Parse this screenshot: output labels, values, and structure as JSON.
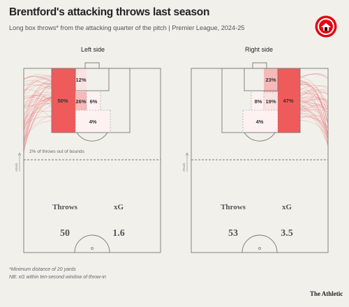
{
  "header": {
    "title": "Brentford's attacking throws last season",
    "subtitle": "Long box throws* from the attacking quarter of the pitch | Premier League, 2024-25"
  },
  "colors": {
    "zone_strong": "#ef5a5a",
    "zone_mid": "#f6b9b9",
    "zone_light": "#fbe2e2",
    "throw_lines": "#e66b6b",
    "pitch_lines": "#777777"
  },
  "chart_data": [
    {
      "type": "heatmap",
      "panel_title": "Left side",
      "zone_values_pct": {
        "wide_box": 50,
        "six_yard_far": 12,
        "penalty_spot": 26,
        "penalty_spot_inner": 6,
        "edge_of_box": 4
      },
      "out_of_bounds_note": "2% of throws out of bounds",
      "direction_label": "Attack",
      "stats": {
        "throws_label": "Throws",
        "xg_label": "xG",
        "throws": "50",
        "xg": "1.6"
      }
    },
    {
      "type": "heatmap",
      "panel_title": "Right side",
      "zone_values_pct": {
        "wide_box": 47,
        "six_yard_far": 23,
        "penalty_spot": 19,
        "penalty_spot_inner": 8,
        "edge_of_box": 4
      },
      "direction_label": "Attack",
      "stats": {
        "throws_label": "Throws",
        "xg_label": "xG",
        "throws": "53",
        "xg": "3.5"
      }
    }
  ],
  "footnotes": {
    "line1": "*Minimum distance of 20 yards",
    "line2": "NB: xG within ten-second window of throw-in",
    "brand": "The Athletic"
  }
}
